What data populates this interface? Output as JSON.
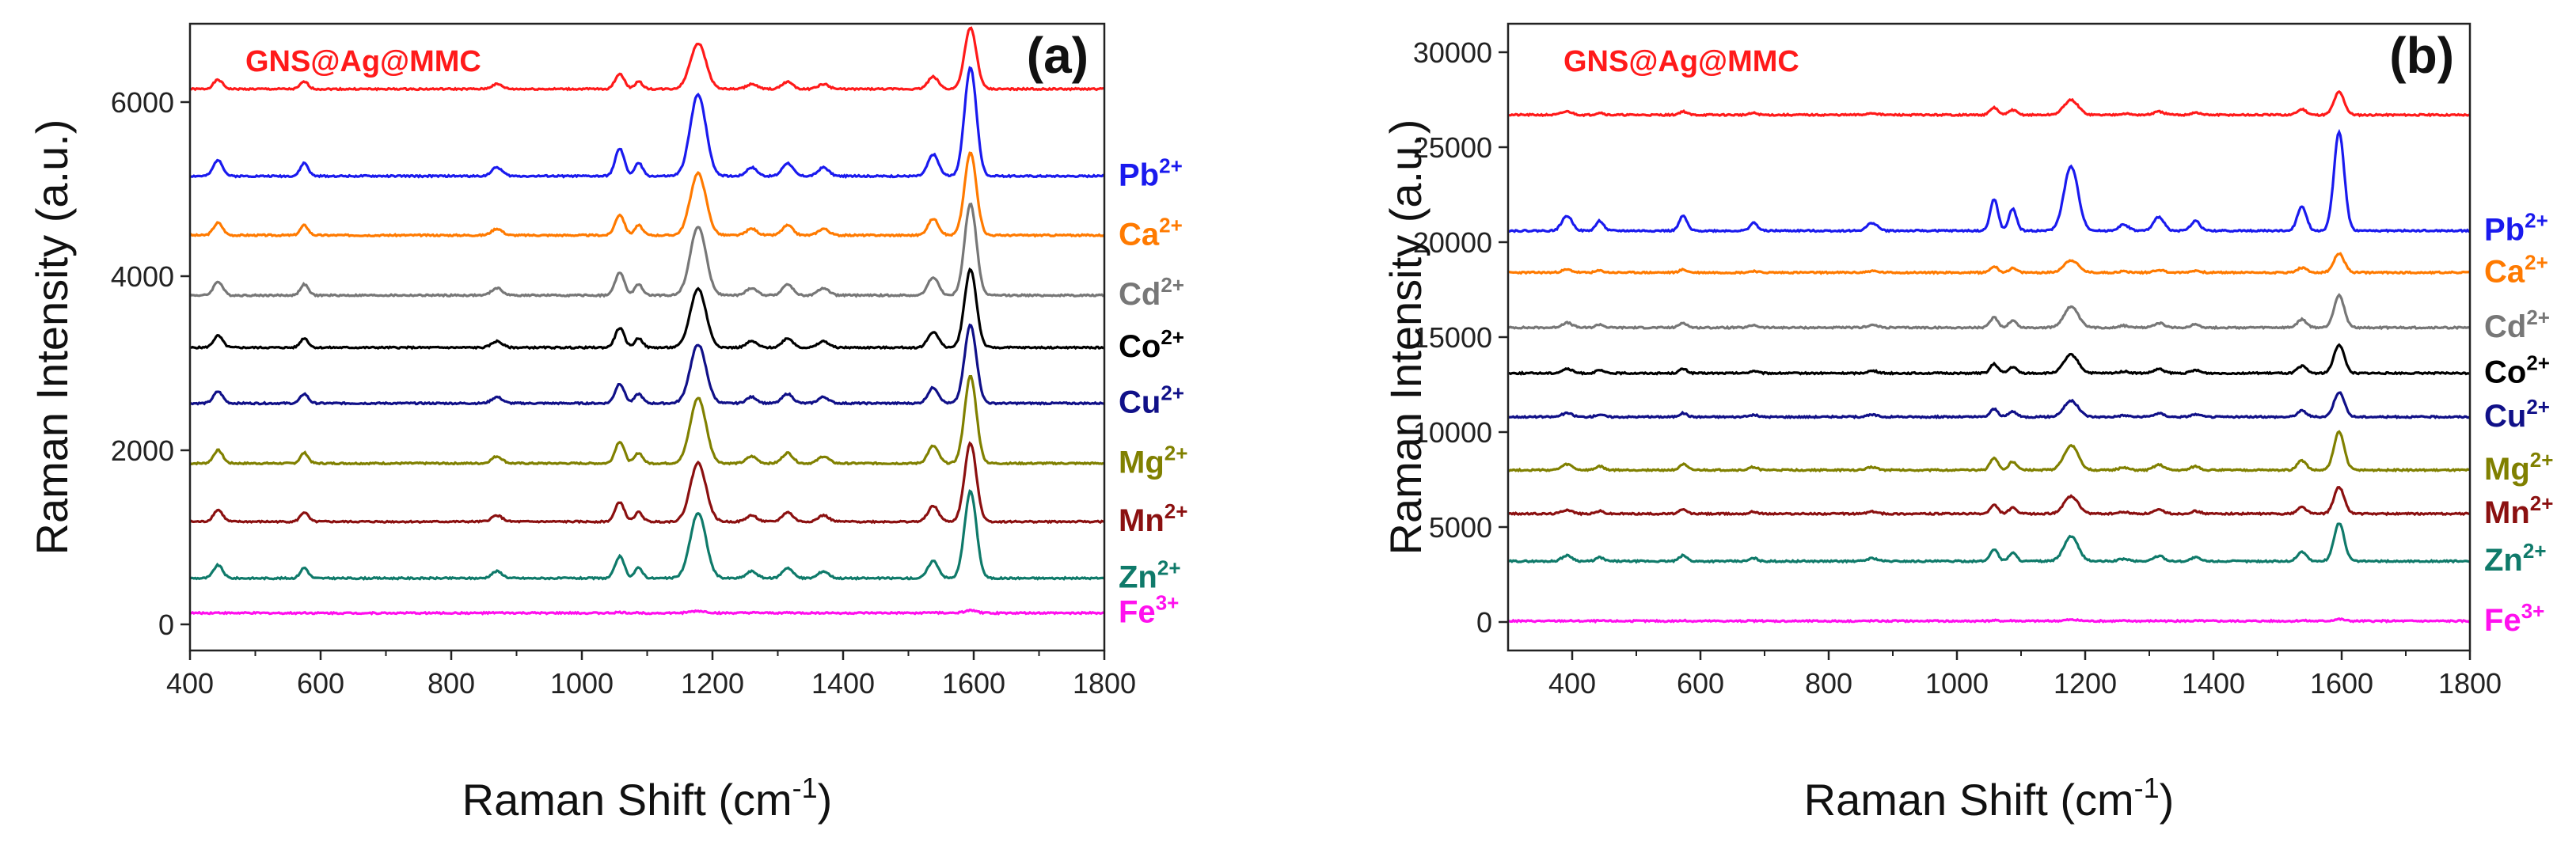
{
  "chart_data": [
    {
      "type": "line",
      "panel_label": "(a)",
      "sample_label": "GNS@Ag@MMC",
      "sample_color": "#ff1a1a",
      "xlabel": "Raman Shift (cm",
      "xlabel_sup": "-1",
      "xlabel_close": ")",
      "ylabel": "Raman Intensity (a.u.)",
      "xlim": [
        400,
        1800
      ],
      "ylim": [
        -300,
        6900
      ],
      "xticks": [
        400,
        600,
        800,
        1000,
        1200,
        1400,
        1600,
        1800
      ],
      "yticks": [
        0,
        2000,
        4000,
        6000
      ],
      "peaks": [
        {
          "x": 443,
          "w": 7,
          "s": 0.15
        },
        {
          "x": 575,
          "w": 6,
          "s": 0.12
        },
        {
          "x": 870,
          "w": 8,
          "s": 0.08
        },
        {
          "x": 1058,
          "w": 7,
          "s": 0.25
        },
        {
          "x": 1087,
          "w": 6,
          "s": 0.12
        },
        {
          "x": 1178,
          "w": 12,
          "s": 0.75
        },
        {
          "x": 1260,
          "w": 8,
          "s": 0.08
        },
        {
          "x": 1315,
          "w": 8,
          "s": 0.12
        },
        {
          "x": 1370,
          "w": 8,
          "s": 0.08
        },
        {
          "x": 1538,
          "w": 8,
          "s": 0.2
        },
        {
          "x": 1595,
          "w": 9,
          "s": 1.0
        }
      ],
      "series": [
        {
          "name": "GNS@Ag@MMC",
          "label": "",
          "sup": "",
          "color": "#ff1a1a",
          "baseline": 6150,
          "amplitude": 700
        },
        {
          "name": "Pb2+",
          "label": "Pb",
          "sup": "2+",
          "color": "#1a1aee",
          "baseline": 5150,
          "amplitude": 1250
        },
        {
          "name": "Ca2+",
          "label": "Ca",
          "sup": "2+",
          "color": "#ff7a00",
          "baseline": 4470,
          "amplitude": 950
        },
        {
          "name": "Cd2+",
          "label": "Cd",
          "sup": "2+",
          "color": "#777777",
          "baseline": 3780,
          "amplitude": 1050
        },
        {
          "name": "Co2+",
          "label": "Co",
          "sup": "2+",
          "color": "#000000",
          "baseline": 3180,
          "amplitude": 900
        },
        {
          "name": "Cu2+",
          "label": "Cu",
          "sup": "2+",
          "color": "#101088",
          "baseline": 2540,
          "amplitude": 900
        },
        {
          "name": "Mg2+",
          "label": "Mg",
          "sup": "2+",
          "color": "#808000",
          "baseline": 1850,
          "amplitude": 1000
        },
        {
          "name": "Mn2+",
          "label": "Mn",
          "sup": "2+",
          "color": "#8b1010",
          "baseline": 1180,
          "amplitude": 900
        },
        {
          "name": "Zn2+",
          "label": "Zn",
          "sup": "2+",
          "color": "#0f7a6a",
          "baseline": 530,
          "amplitude": 1000
        },
        {
          "name": "Fe3+",
          "label": "Fe",
          "sup": "3+",
          "color": "#ff10ee",
          "baseline": 130,
          "amplitude": 30
        }
      ]
    },
    {
      "type": "line",
      "panel_label": "(b)",
      "sample_label": "GNS@Ag@MMC",
      "sample_color": "#ff1a1a",
      "xlabel": "Raman Shift (cm",
      "xlabel_sup": "-1",
      "xlabel_close": ")",
      "ylabel": "Raman Intensity (a.u.)",
      "xlim": [
        300,
        1800
      ],
      "ylim": [
        -1500,
        31500
      ],
      "xticks": [
        400,
        600,
        800,
        1000,
        1200,
        1400,
        1600,
        1800
      ],
      "yticks": [
        0,
        5000,
        10000,
        15000,
        20000,
        25000,
        30000
      ],
      "peaks": [
        {
          "x": 392,
          "w": 8,
          "s": 0.15
        },
        {
          "x": 443,
          "w": 6,
          "s": 0.1
        },
        {
          "x": 573,
          "w": 6,
          "s": 0.15
        },
        {
          "x": 683,
          "w": 6,
          "s": 0.08
        },
        {
          "x": 868,
          "w": 8,
          "s": 0.08
        },
        {
          "x": 1058,
          "w": 6,
          "s": 0.32
        },
        {
          "x": 1087,
          "w": 6,
          "s": 0.22
        },
        {
          "x": 1178,
          "w": 11,
          "s": 0.65
        },
        {
          "x": 1260,
          "w": 8,
          "s": 0.06
        },
        {
          "x": 1315,
          "w": 8,
          "s": 0.14
        },
        {
          "x": 1372,
          "w": 7,
          "s": 0.1
        },
        {
          "x": 1538,
          "w": 7,
          "s": 0.25
        },
        {
          "x": 1596,
          "w": 8,
          "s": 1.0
        }
      ],
      "series": [
        {
          "name": "GNS@Ag@MMC",
          "label": "",
          "sup": "",
          "color": "#ff1a1a",
          "baseline": 26700,
          "amplitude": 1200
        },
        {
          "name": "Pb2+",
          "label": "Pb",
          "sup": "2+",
          "color": "#1a1aee",
          "baseline": 20600,
          "amplitude": 5200
        },
        {
          "name": "Ca2+",
          "label": "Ca",
          "sup": "2+",
          "color": "#ff7a00",
          "baseline": 18400,
          "amplitude": 1000
        },
        {
          "name": "Cd2+",
          "label": "Cd",
          "sup": "2+",
          "color": "#777777",
          "baseline": 15500,
          "amplitude": 1700
        },
        {
          "name": "Co2+",
          "label": "Co",
          "sup": "2+",
          "color": "#000000",
          "baseline": 13100,
          "amplitude": 1500
        },
        {
          "name": "Cu2+",
          "label": "Cu",
          "sup": "2+",
          "color": "#101088",
          "baseline": 10800,
          "amplitude": 1300
        },
        {
          "name": "Mg2+",
          "label": "Mg",
          "sup": "2+",
          "color": "#808000",
          "baseline": 8000,
          "amplitude": 2000
        },
        {
          "name": "Mn2+",
          "label": "Mn",
          "sup": "2+",
          "color": "#8b1010",
          "baseline": 5700,
          "amplitude": 1400
        },
        {
          "name": "Zn2+",
          "label": "Zn",
          "sup": "2+",
          "color": "#0f7a6a",
          "baseline": 3200,
          "amplitude": 2000
        },
        {
          "name": "Fe3+",
          "label": "Fe",
          "sup": "3+",
          "color": "#ff10ee",
          "baseline": 50,
          "amplitude": 100
        }
      ]
    }
  ]
}
